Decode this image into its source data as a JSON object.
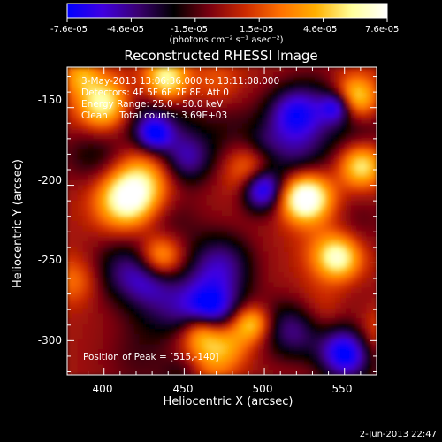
{
  "chart_data": {
    "type": "heatmap",
    "title": "Reconstructed RHESSI Image",
    "xlabel": "Heliocentric X (arcsec)",
    "ylabel": "Heliocentric Y (arcsec)",
    "xlim": [
      377,
      570
    ],
    "ylim": [
      -322,
      -124
    ],
    "xticks": [
      400,
      450,
      500,
      550
    ],
    "yticks": [
      -150,
      -200,
      -250,
      -300
    ],
    "grid": false,
    "colorbar": {
      "position": "top",
      "range": [
        -7.6e-05,
        7.6e-05
      ],
      "tick_labels": [
        "-7.6e-05",
        "-4.6e-05",
        "-1.5e-05",
        "1.5e-05",
        "4.6e-05",
        "7.6e-05"
      ],
      "unit_label": "(photons cm⁻² s⁻¹ asec⁻²)",
      "colors": [
        "#0000ff",
        "#4000e0",
        "#3a0070",
        "#000000",
        "#7a0010",
        "#cc2a00",
        "#ff7000",
        "#ffb000",
        "#ffff9a",
        "#ffffff"
      ]
    },
    "annotations": {
      "time": "3-May-2013 13:06:36.000 to 13:11:08.000",
      "detectors": "Detectors: 4F 5F 6F 7F 8F, Att 0",
      "energy": "Energy Range: 25.0 - 50.0 keV",
      "clean": "Clean    Total counts: 3.69E+03",
      "peak": "Position of Peak = [515,-140]"
    },
    "peak": {
      "x": 515,
      "y": -140
    }
  },
  "footer": {
    "date": "2-Jun-2013 22:47"
  }
}
